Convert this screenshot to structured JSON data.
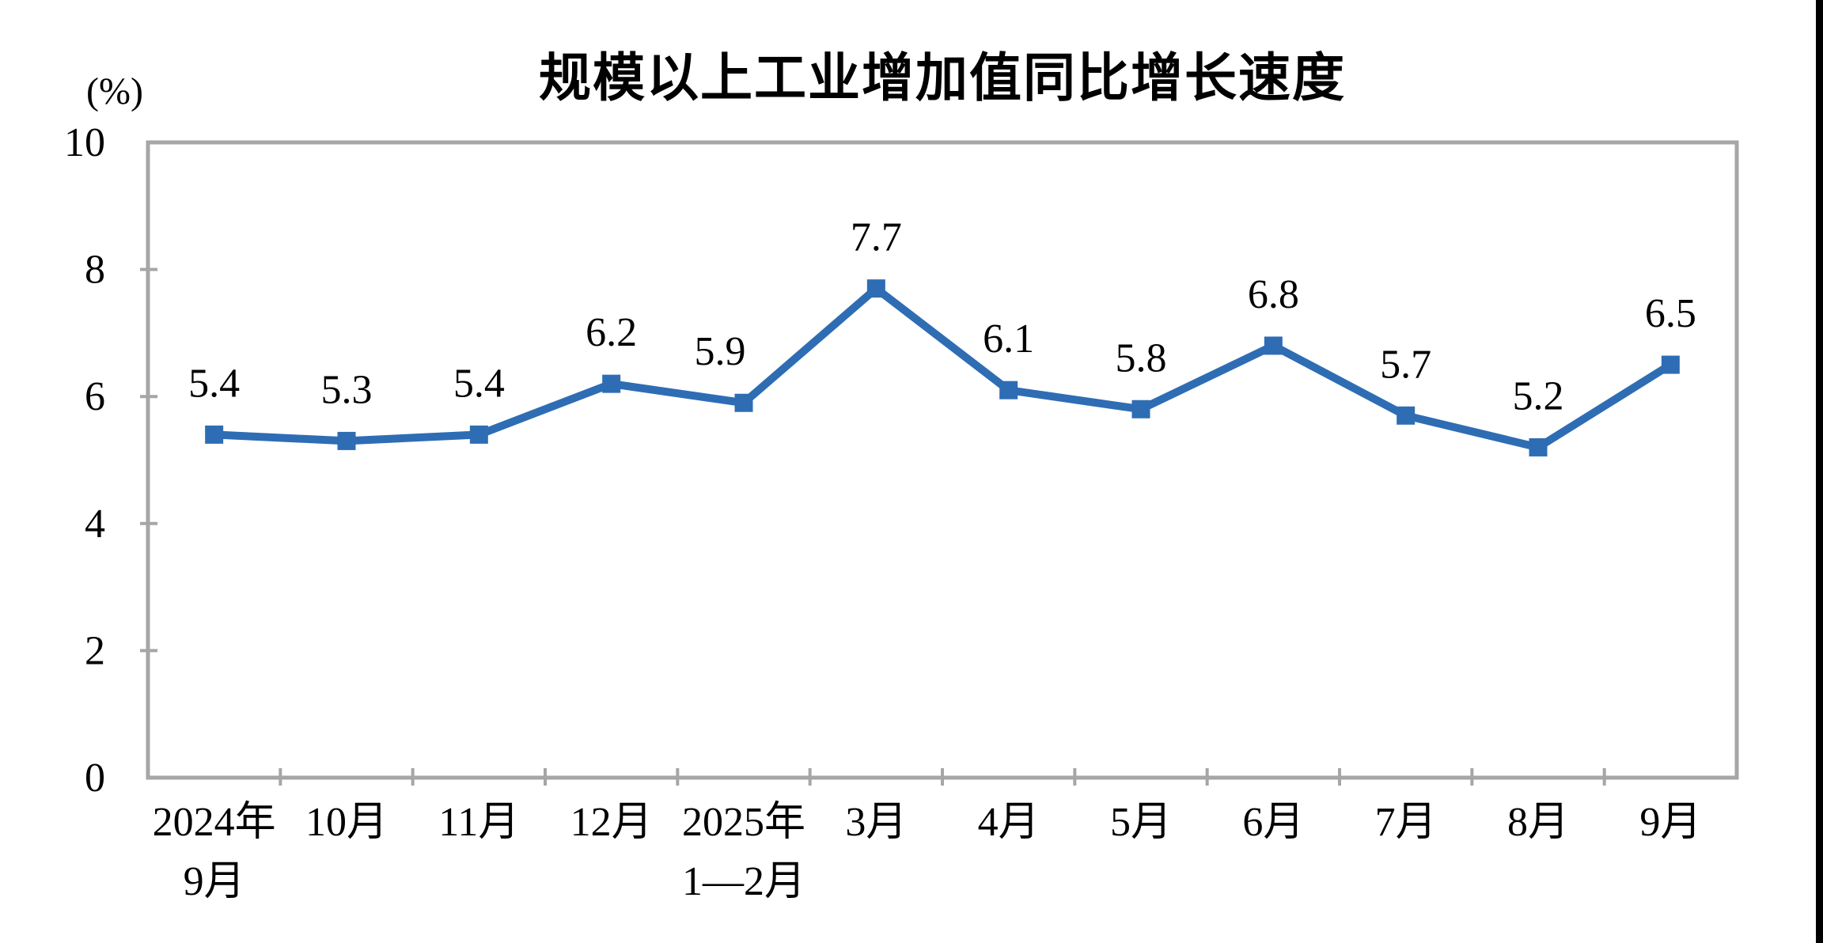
{
  "chart_data": {
    "type": "line",
    "title": "规模以上工业增加值同比增长速度",
    "unit_label": "(%)",
    "categories": [
      [
        "2024年",
        "9月"
      ],
      [
        "10月"
      ],
      [
        "11月"
      ],
      [
        "12月"
      ],
      [
        "2025年",
        "1—2月"
      ],
      [
        "3月"
      ],
      [
        "4月"
      ],
      [
        "5月"
      ],
      [
        "6月"
      ],
      [
        "7月"
      ],
      [
        "8月"
      ],
      [
        "9月"
      ]
    ],
    "values": [
      5.4,
      5.3,
      5.4,
      6.2,
      5.9,
      7.7,
      6.1,
      5.8,
      6.8,
      5.7,
      5.2,
      6.5
    ],
    "data_labels": [
      "5.4",
      "5.3",
      "5.4",
      "6.2",
      "5.9",
      "7.7",
      "6.1",
      "5.8",
      "6.8",
      "5.7",
      "5.2",
      "6.5"
    ],
    "label_dx": [
      0,
      0,
      0,
      0,
      -30,
      0,
      0,
      0,
      0,
      0,
      0,
      0
    ],
    "yticks": [
      0,
      2,
      4,
      6,
      8,
      10
    ],
    "ylim": [
      0,
      10
    ],
    "grid": "off",
    "legend": "none",
    "line_color": "#2E6DB4",
    "marker": "square",
    "axis_color": "#A6A6A6",
    "text_color": "#000000",
    "edge_bar_color": "#000000"
  }
}
